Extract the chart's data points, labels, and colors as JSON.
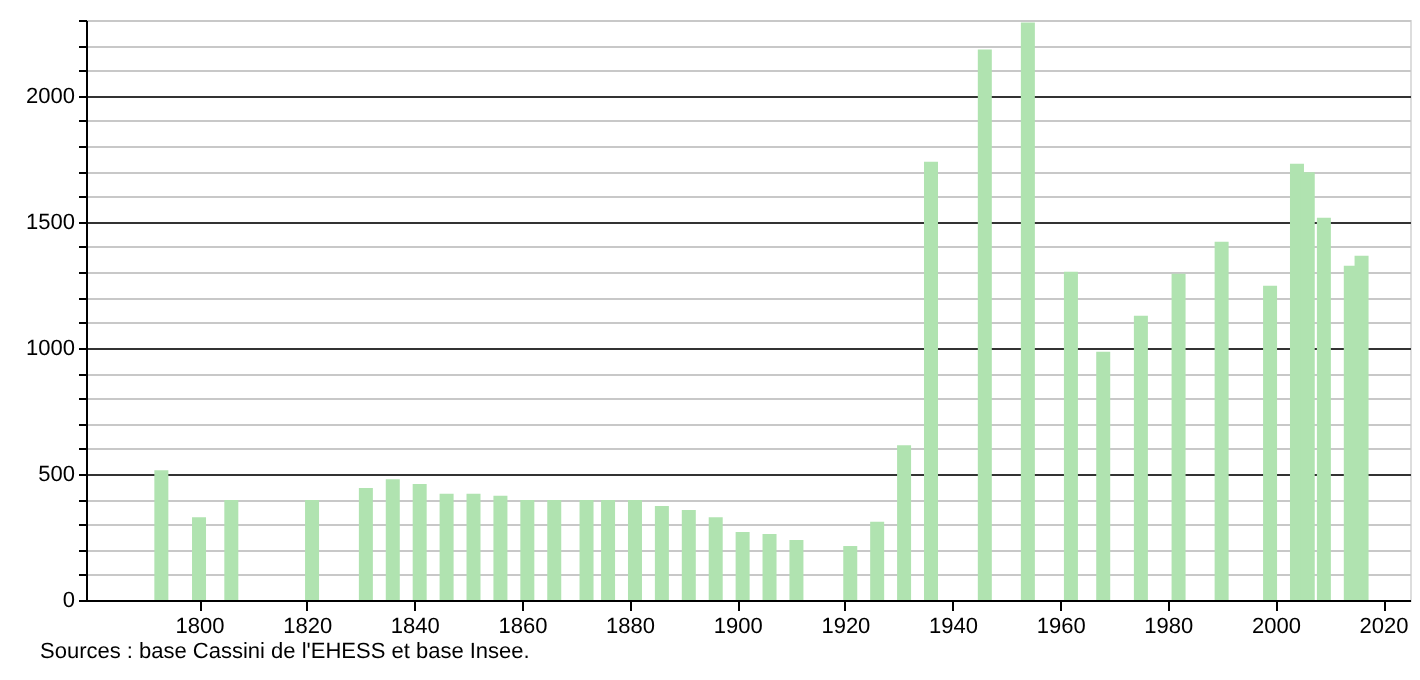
{
  "chart_data": {
    "type": "bar",
    "x": [
      1793,
      1800,
      1806,
      1821,
      1831,
      1836,
      1841,
      1846,
      1851,
      1856,
      1861,
      1866,
      1872,
      1876,
      1881,
      1886,
      1891,
      1896,
      1901,
      1906,
      1911,
      1921,
      1926,
      1931,
      1936,
      1946,
      1954,
      1962,
      1968,
      1975,
      1982,
      1990,
      1999,
      2004,
      2006,
      2009,
      2014,
      2016
    ],
    "values": [
      515,
      328,
      397,
      397,
      444,
      479,
      460,
      421,
      421,
      413,
      397,
      397,
      397,
      397,
      397,
      373,
      357,
      328,
      270,
      262,
      238,
      214,
      310,
      614,
      1738,
      2183,
      2290,
      1302,
      984,
      1127,
      1294,
      1421,
      1246,
      1730,
      1696,
      1516,
      1325,
      1365
    ],
    "color": "#b0e3b0",
    "xlim": [
      1779,
      2025
    ],
    "xticks": [
      1800,
      1820,
      1840,
      1860,
      1880,
      1900,
      1920,
      1940,
      1960,
      1980,
      2000,
      2020
    ],
    "ylim": [
      0,
      2300
    ],
    "yticks": [
      0,
      {
        "value": 100,
        "label": null
      },
      {
        "value": 200,
        "label": null
      },
      {
        "value": 300,
        "label": null
      },
      {
        "value": 400,
        "label": null
      },
      500,
      {
        "value": 600,
        "label": null
      },
      {
        "value": 700,
        "label": null
      },
      {
        "value": 800,
        "label": null
      },
      {
        "value": 900,
        "label": null
      },
      1000,
      {
        "value": 1100,
        "label": null
      },
      {
        "value": 1200,
        "label": null
      },
      {
        "value": 1300,
        "label": null
      },
      {
        "value": 1400,
        "label": null
      },
      1500,
      {
        "value": 1600,
        "label": null
      },
      {
        "value": 1700,
        "label": null
      },
      {
        "value": 1800,
        "label": null
      },
      {
        "value": 1900,
        "label": null
      },
      2000,
      {
        "value": 2100,
        "label": null
      },
      {
        "value": 2200,
        "label": null
      },
      {
        "value": 2300,
        "label": null
      }
    ],
    "grid": "y",
    "annotations": [
      "Sources : base Cassini de l'EHESS et base Insee."
    ]
  }
}
